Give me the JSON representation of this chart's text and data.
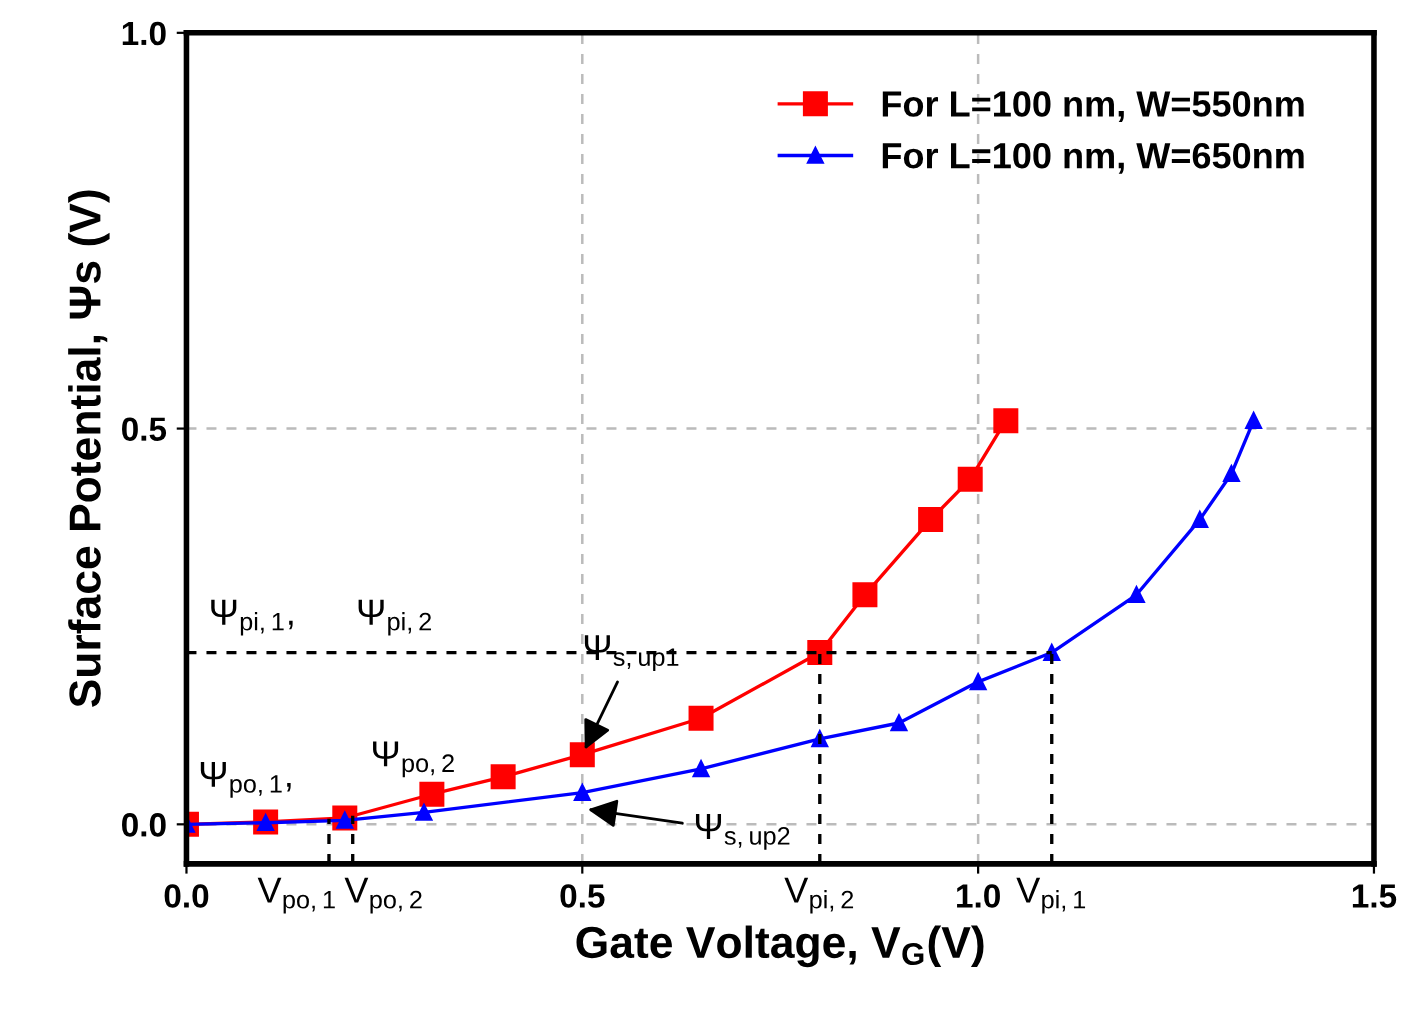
{
  "chart_data": {
    "type": "line",
    "xlabel": "Gate Voltage, V$_{G}$(V)",
    "ylabel": "Surface Potential, Ψs (V)",
    "xlim": [
      0,
      1.5
    ],
    "ylim": [
      -0.05,
      1.0
    ],
    "xticks": [
      {
        "value": 0,
        "label": "0.0"
      },
      0.5,
      {
        "value": 1,
        "label": "1.0"
      },
      1.5
    ],
    "yticks": [
      {
        "value": 0,
        "label": "0.0"
      },
      0.5,
      {
        "value": 1,
        "label": "1.0"
      }
    ],
    "grid": true,
    "legend": "top right",
    "line_style": "solid",
    "series": [
      {
        "name": "For L=100 nm, W=550nm",
        "color": "#ff0000",
        "marker": "square",
        "x": [
          0,
          0.1,
          0.2,
          0.31,
          0.4,
          0.5,
          0.65,
          0.8,
          0.857,
          0.94,
          0.99,
          1.035
        ],
        "values": [
          0,
          0.003,
          0.008,
          0.038,
          0.06,
          0.088,
          0.134,
          0.217,
          0.29,
          0.385,
          0.436,
          0.51
        ]
      },
      {
        "name": "For L=100 nm, W=650nm",
        "color": "#0000ff",
        "marker": "triangle",
        "x": [
          0,
          0.1,
          0.2,
          0.3,
          0.5,
          0.65,
          0.8,
          0.9,
          1.0,
          1.093,
          1.2,
          1.28,
          1.32,
          1.348
        ],
        "values": [
          0,
          0.002,
          0.005,
          0.015,
          0.04,
          0.07,
          0.108,
          0.128,
          0.18,
          0.217,
          0.29,
          0.385,
          0.443,
          0.51
        ]
      }
    ],
    "ref_lines": [
      {
        "axis": "y",
        "value": 0.217,
        "label": "Ψ$_{pi,1}$,      Ψ$_{pi,2}$",
        "color": "#000000",
        "line_style": "dashed"
      },
      {
        "axis": "x",
        "value": 0.18,
        "label": "V$_{po,1}$",
        "color": "#000000",
        "line_style": "dashed"
      },
      {
        "axis": "x",
        "value": 0.21,
        "label": "V$_{po,2}$",
        "color": "#000000",
        "line_style": "dashed"
      },
      {
        "axis": "x",
        "value": 0.8,
        "label": "V$_{pi,2}$",
        "color": "#000000",
        "line_style": "dashed"
      },
      {
        "axis": "x",
        "value": 1.093,
        "label": "V$_{pi,1}$",
        "color": "#000000",
        "line_style": "dashed"
      }
    ],
    "annotations": [
      {
        "text": "Ψ$_{po,1}$,",
        "x": 0.05,
        "y": 0.005
      },
      {
        "text": "Ψ$_{po,2}$",
        "x": 0.25,
        "y": 0.01
      },
      {
        "text": "Ψ$_{s,up1}$",
        "x": 0.5,
        "y": 0.088
      },
      {
        "text": "Ψ$_{s,up2}$",
        "x": 0.5,
        "y": 0.02
      }
    ]
  }
}
